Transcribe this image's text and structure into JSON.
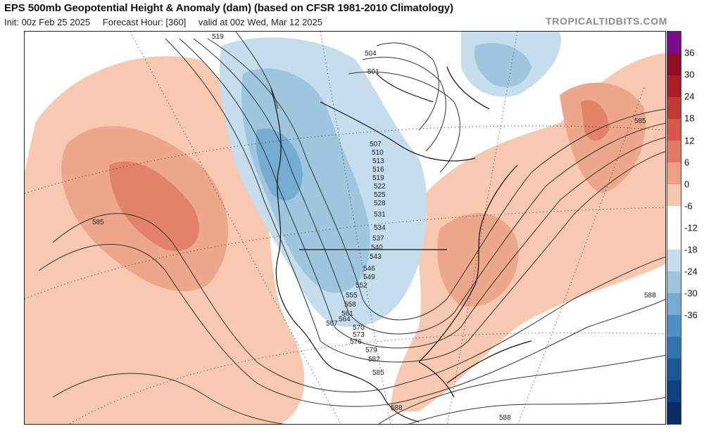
{
  "header": {
    "title": "EPS 500mb Geopotential Height & Anomaly (dam) (based on CFSR 1981-2010 Climatology)",
    "init": "Init: 00z Feb 25 2025",
    "forecast_hour": "Forecast Hour: [360]",
    "valid": "valid at 00z Wed, Mar 12 2025",
    "credit": "TROPICALTIDBITS.COM"
  },
  "colorbar": {
    "ticks": [
      "36",
      "30",
      "24",
      "18",
      "12",
      "6",
      "0",
      "-6",
      "-12",
      "-18",
      "-24",
      "-30",
      "-36"
    ],
    "colors": [
      "#7a0a8c",
      "#8e0f1f",
      "#a81d26",
      "#c23a36",
      "#d6584a",
      "#e27a64",
      "#eda085",
      "#f6c6ad",
      "#ffffff",
      "#ffffff",
      "#c5dded",
      "#9ec7df",
      "#74acd2",
      "#4d90c2",
      "#2f73b0",
      "#1c579a",
      "#123f80",
      "#0a2c66"
    ]
  },
  "contour_labels": [
    "519",
    "504",
    "501",
    "507",
    "510",
    "513",
    "516",
    "519",
    "522",
    "525",
    "528",
    "531",
    "534",
    "537",
    "540",
    "543",
    "546",
    "549",
    "552",
    "555",
    "558",
    "561",
    "564",
    "567",
    "570",
    "573",
    "576",
    "579",
    "582",
    "585",
    "588",
    "585",
    "585",
    "588",
    "588"
  ]
}
